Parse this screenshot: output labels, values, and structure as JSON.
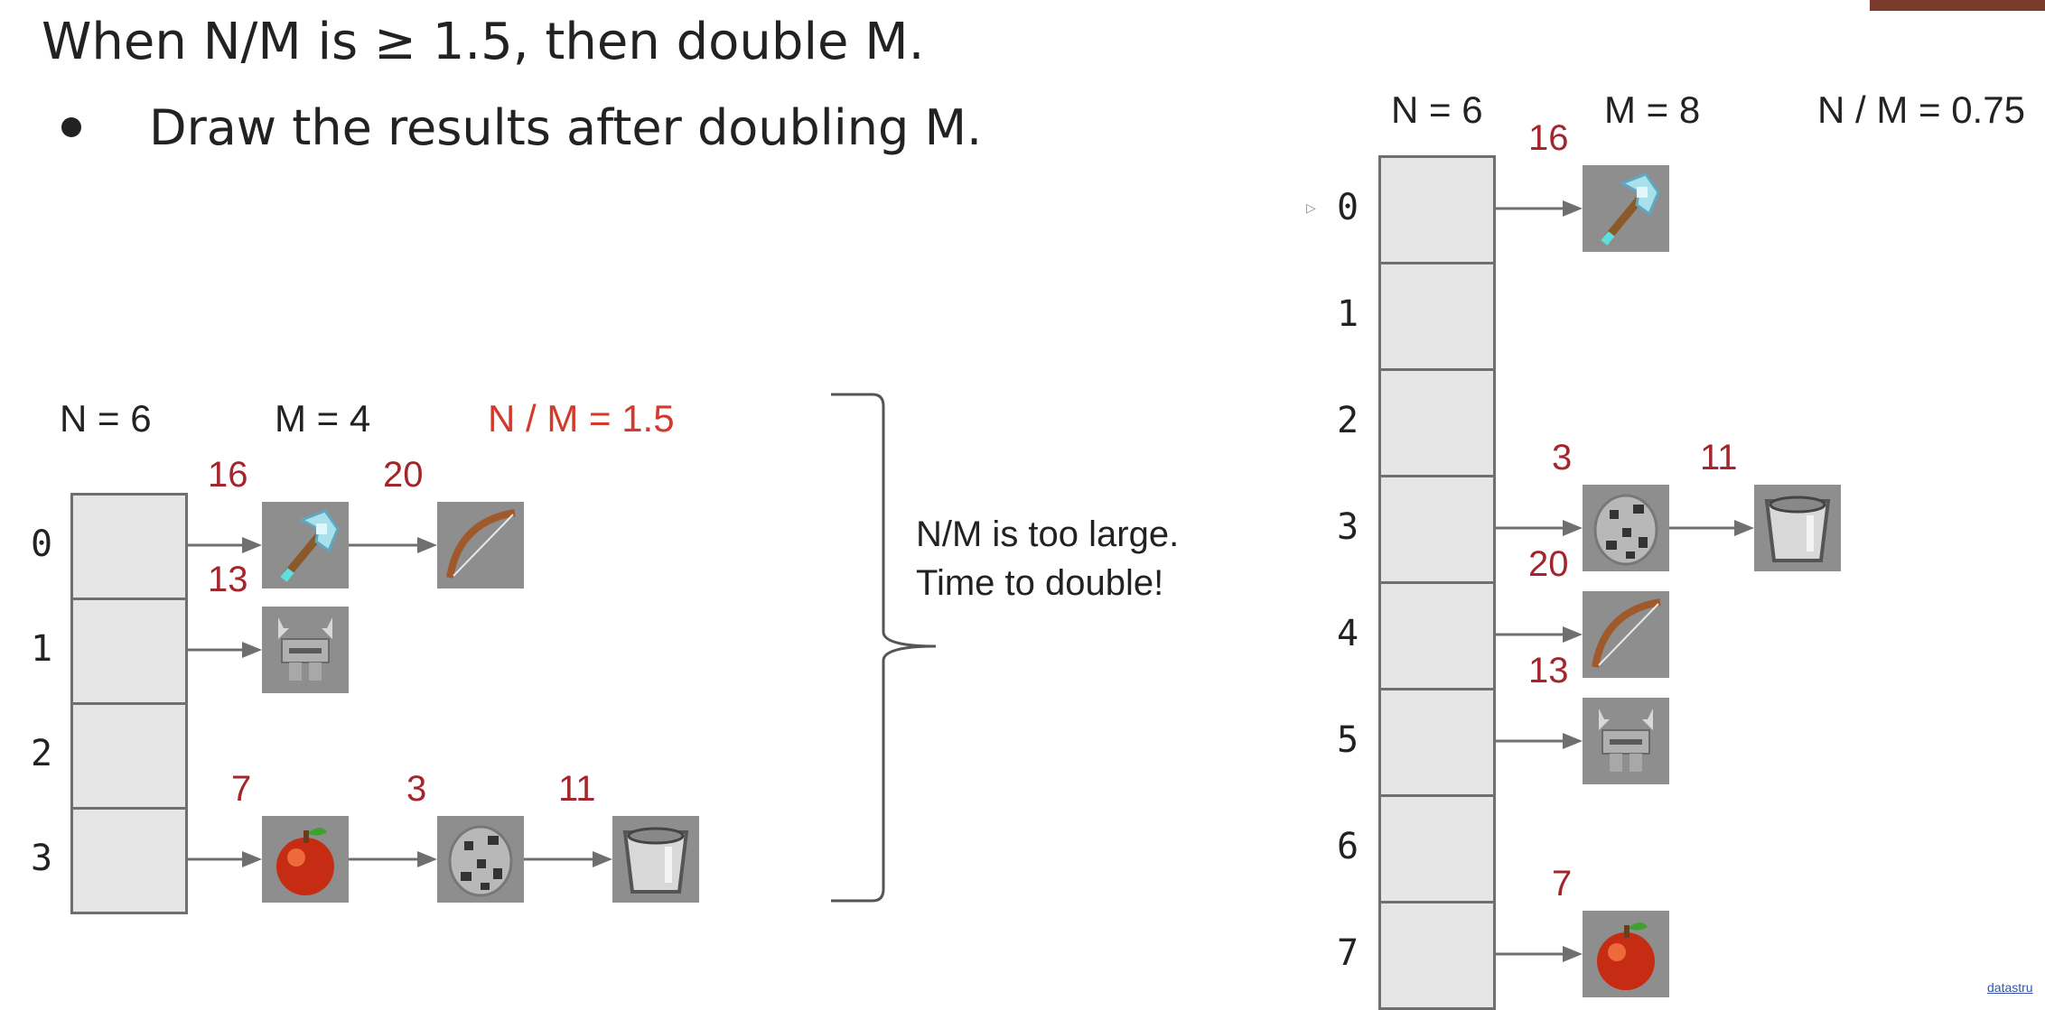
{
  "title": "When N/M is ≥ 1.5, then double M.",
  "bullet": "Draw the results after doubling M.",
  "left": {
    "n_label": "N = 6",
    "m_label": "M = 4",
    "ratio_label": "N / M = 1.5",
    "indices": [
      "0",
      "1",
      "2",
      "3"
    ],
    "chains": [
      [
        {
          "key": "16",
          "item": "axe"
        },
        {
          "key": "20",
          "item": "bow"
        }
      ],
      [
        {
          "key": "13",
          "item": "helmet"
        }
      ],
      [],
      [
        {
          "key": "7",
          "item": "apple"
        },
        {
          "key": "3",
          "item": "coal-ore"
        },
        {
          "key": "11",
          "item": "bucket"
        }
      ]
    ]
  },
  "note": {
    "line1": "N/M is too large.",
    "line2": "Time to double!"
  },
  "right": {
    "n_label": "N = 6",
    "m_label": "M = 8",
    "ratio_label": "N / M = 0.75",
    "indices": [
      "0",
      "1",
      "2",
      "3",
      "4",
      "5",
      "6",
      "7"
    ],
    "chains": [
      [
        {
          "key": "16",
          "item": "axe"
        }
      ],
      [],
      [],
      [
        {
          "key": "3",
          "item": "coal-ore"
        },
        {
          "key": "11",
          "item": "bucket"
        }
      ],
      [
        {
          "key": "20",
          "item": "bow"
        }
      ],
      [
        {
          "key": "13",
          "item": "helmet"
        }
      ],
      [],
      [
        {
          "key": "7",
          "item": "apple"
        }
      ]
    ]
  },
  "footer_link": "datastru",
  "colors": {
    "key_red": "#a4262c",
    "ratio_red": "#d23a2b",
    "bucket_fill": "#e6e6e6",
    "arrow": "#6f6f6f"
  }
}
